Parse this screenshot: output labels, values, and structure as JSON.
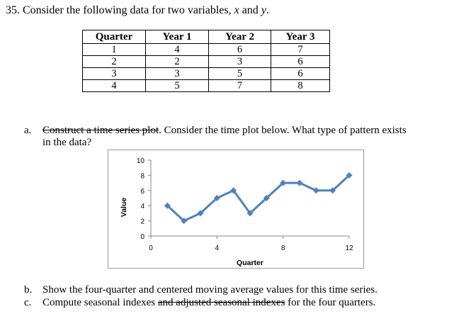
{
  "question": {
    "number": "35.",
    "intro_prefix": "Consider the following data for two variables, ",
    "var_x": "x",
    "intro_and": " and ",
    "var_y": "y",
    "intro_suffix": "."
  },
  "table": {
    "headers": [
      "Quarter",
      "Year 1",
      "Year 2",
      "Year 3"
    ],
    "rows": [
      [
        "1",
        "4",
        "6",
        "7"
      ],
      [
        "2",
        "2",
        "3",
        "6"
      ],
      [
        "3",
        "3",
        "5",
        "6"
      ],
      [
        "4",
        "5",
        "7",
        "8"
      ]
    ]
  },
  "parts": {
    "a": {
      "label": "a.",
      "struck": "Construct a time series plot",
      "text": ". Consider the time plot below. What type of pattern exists",
      "text_cont": "in the data?"
    },
    "b": {
      "label": "b.",
      "text": "Show the four-quarter and centered moving average values for this time series."
    },
    "c": {
      "label": "c.",
      "text_before": "Compute seasonal indexes ",
      "struck": "and adjusted seasonal indexes",
      "text_after": " for the four quarters."
    }
  },
  "chart_data": {
    "type": "line",
    "title": "",
    "xlabel": "Quarter",
    "ylabel": "Value",
    "x": [
      1,
      2,
      3,
      4,
      5,
      6,
      7,
      8,
      9,
      10,
      11,
      12
    ],
    "series": [
      {
        "name": "Value",
        "values": [
          4,
          2,
          3,
          5,
          6,
          3,
          5,
          7,
          7,
          6,
          6,
          8
        ],
        "color": "#4f81bd",
        "marker": "diamond"
      }
    ],
    "xlim": [
      0,
      12
    ],
    "ylim": [
      0,
      10
    ],
    "x_ticks": [
      "0",
      "4",
      "8",
      "12"
    ],
    "y_ticks": [
      "0",
      "2",
      "4",
      "6",
      "8",
      "10"
    ],
    "grid": false,
    "legend": "none"
  }
}
